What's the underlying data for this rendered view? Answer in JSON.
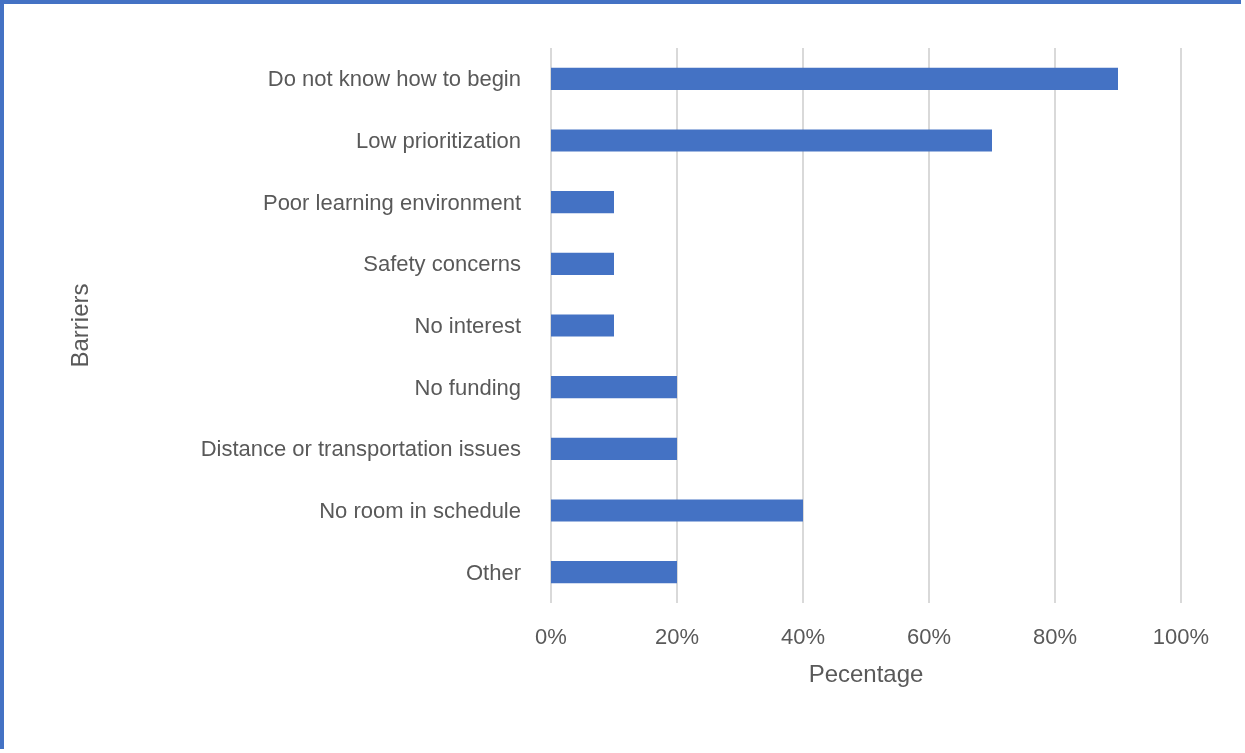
{
  "chart_data": {
    "type": "bar",
    "orientation": "horizontal",
    "xlabel": "Pecentage",
    "ylabel": "Barriers",
    "categories": [
      "Do not know how to begin",
      "Low prioritization",
      "Poor learning environment",
      "Safety concerns",
      "No interest",
      "No funding",
      "Distance or transportation issues",
      "No room in schedule",
      "Other"
    ],
    "values": [
      90,
      70,
      10,
      10,
      10,
      20,
      20,
      40,
      20
    ],
    "color": "#4472c4",
    "xlim": [
      0,
      100
    ],
    "xticks": [
      {
        "value": 0,
        "label": "0%"
      },
      {
        "value": 20,
        "label": "20%"
      },
      {
        "value": 40,
        "label": "40%"
      },
      {
        "value": 60,
        "label": "60%"
      },
      {
        "value": 80,
        "label": "80%"
      },
      {
        "value": 100,
        "label": "100%"
      }
    ],
    "grid": "x"
  }
}
